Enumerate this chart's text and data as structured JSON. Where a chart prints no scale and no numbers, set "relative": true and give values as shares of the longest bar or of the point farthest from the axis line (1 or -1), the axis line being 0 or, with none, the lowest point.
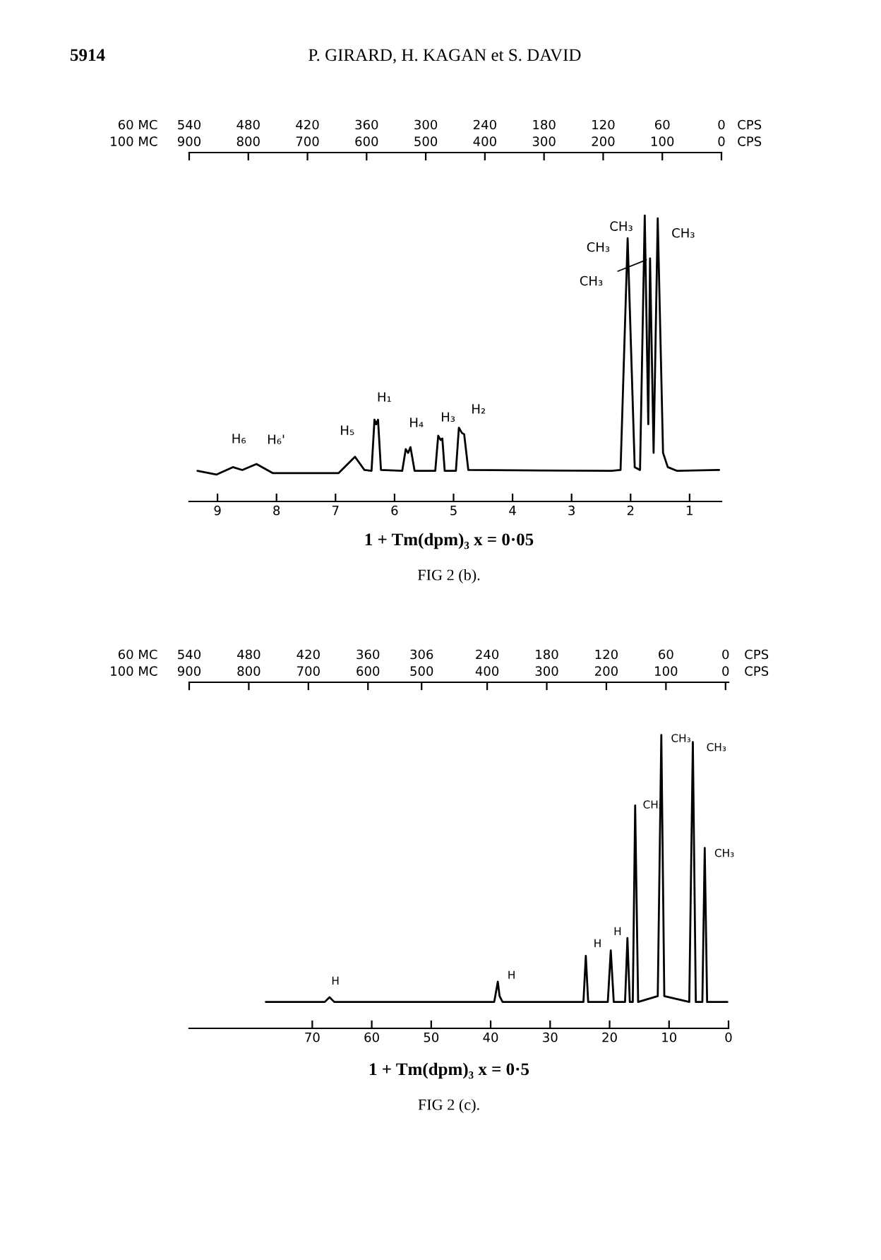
{
  "chart_data": [
    {
      "type": "line",
      "relative": true,
      "series": [
        {
          "color": "#000000",
          "x": [
            9.34,
            9.02,
            8.74,
            8.58,
            8.34,
            8.06,
            6.95,
            6.67,
            6.51,
            6.39,
            6.34,
            6.31,
            6.28,
            6.23,
            5.87,
            5.81,
            5.77,
            5.73,
            5.66,
            5.31,
            5.26,
            5.22,
            5.19,
            5.15,
            4.96,
            4.91,
            4.86,
            4.82,
            4.75,
            2.32,
            2.17,
            2.05,
            1.93,
            1.84,
            1.76,
            1.7,
            1.67,
            1.61,
            1.54,
            1.45,
            1.37,
            1.21,
            0.5
          ],
          "values": [
            0.107,
            0.094,
            0.12,
            0.11,
            0.131,
            0.099,
            0.099,
            0.156,
            0.11,
            0.107,
            0.286,
            0.27,
            0.286,
            0.11,
            0.107,
            0.183,
            0.17,
            0.19,
            0.107,
            0.107,
            0.23,
            0.215,
            0.22,
            0.107,
            0.107,
            0.258,
            0.24,
            0.235,
            0.11,
            0.107,
            0.11,
            0.92,
            0.12,
            0.11,
            1.0,
            0.27,
            0.85,
            0.17,
            0.99,
            0.17,
            0.12,
            0.107,
            0.11
          ]
        }
      ],
      "xlim": [
        9.48,
        0.46
      ],
      "xticks": [
        9,
        8,
        7,
        6,
        5,
        4,
        3,
        2,
        1
      ],
      "x2lim": [
        540,
        0
      ],
      "x2ticks": [
        540,
        480,
        420,
        360,
        300,
        240,
        180,
        120,
        60,
        0
      ],
      "annotations": [
        "60 MC",
        "100 MC",
        "CPS",
        "CPS",
        "1 + Tm(dpm)₃ x = 0·05",
        "FIG 2 (b).",
        "5914",
        "P. GIRARD, H. KAGAN et S. DAVID",
        "900",
        "800",
        "700",
        "600",
        "500",
        "400",
        "300",
        "200",
        "100",
        "0",
        {
          "text": "H₆",
          "x": 8.74,
          "y": 0.12
        },
        {
          "text": "H₆'",
          "x": 8.34,
          "y": 0.131
        },
        {
          "text": "H₅",
          "x": 6.67,
          "y": 0.156
        },
        {
          "text": "H₁",
          "x": 6.34,
          "y": 0.286
        },
        {
          "text": "H₄",
          "x": 5.73,
          "y": 0.19
        },
        {
          "text": "H₃",
          "x": 5.26,
          "y": 0.23
        },
        {
          "text": "H₂",
          "x": 4.91,
          "y": 0.258
        },
        {
          "text": "CH₃",
          "x": 1.76,
          "y": 1.0
        },
        {
          "text": "CH₃",
          "x": 2.05,
          "y": 0.92
        },
        {
          "text": "CH₃",
          "x": 1.67,
          "y": 0.85
        },
        {
          "text": "CH₃",
          "x": 1.54,
          "y": 0.99
        }
      ]
    },
    {
      "type": "line",
      "relative": true,
      "series": [
        {
          "color": "#000000",
          "x": [
            77.8,
            67.9,
            67.1,
            66.3,
            39.4,
            38.8,
            38.5,
            38.0,
            24.4,
            24.0,
            23.6,
            20.3,
            19.8,
            19.3,
            17.4,
            17.0,
            16.6,
            16.1,
            15.7,
            15.2,
            11.9,
            11.3,
            10.8,
            6.6,
            6.0,
            5.5,
            4.4,
            4.0,
            3.6,
            0.2
          ],
          "values": [
            0.09,
            0.09,
            0.106,
            0.09,
            0.09,
            0.159,
            0.11,
            0.09,
            0.09,
            0.247,
            0.09,
            0.09,
            0.266,
            0.09,
            0.09,
            0.308,
            0.09,
            0.09,
            0.76,
            0.09,
            0.11,
            1.0,
            0.11,
            0.09,
            0.976,
            0.09,
            0.09,
            0.615,
            0.09,
            0.09
          ]
        }
      ],
      "xlim": [
        90.7,
        0
      ],
      "xticks": [
        70,
        60,
        50,
        40,
        30,
        20,
        10,
        0
      ],
      "x2lim": [
        540,
        -3
      ],
      "x2ticks": [
        540,
        480,
        420,
        360,
        306,
        240,
        180,
        120,
        60,
        0
      ],
      "annotations": [
        "60 MC",
        "100 MC",
        "CPS",
        "CPS",
        "1 + Tm(dpm)₃ x = 0·5",
        "FIG 2 (c).",
        "900",
        "800",
        "700",
        "600",
        "500",
        "400",
        "300",
        "200",
        "100",
        "0",
        {
          "text": "H",
          "x": 67.1,
          "y": 0.106
        },
        {
          "text": "H",
          "x": 38.8,
          "y": 0.159
        },
        {
          "text": "H",
          "x": 24.0,
          "y": 0.247
        },
        {
          "text": "H",
          "x": 17.0,
          "y": 0.308
        },
        {
          "text": "CH₃",
          "x": 15.7,
          "y": 0.76
        },
        {
          "text": "CH₃",
          "x": 11.3,
          "y": 1.0
        },
        {
          "text": "CH₃",
          "x": 6.0,
          "y": 0.976
        },
        {
          "text": "CH₃",
          "x": 4.0,
          "y": 0.615
        }
      ]
    }
  ]
}
